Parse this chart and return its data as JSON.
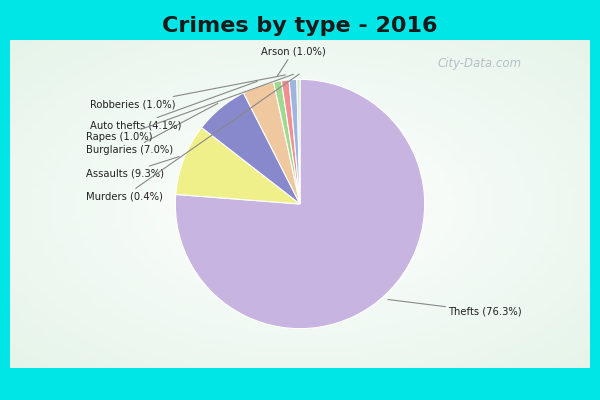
{
  "title": "Crimes by type - 2016",
  "title_fontsize": 16,
  "labels": [
    "Thefts",
    "Assaults",
    "Burglaries",
    "Auto thefts",
    "Arson",
    "Robberies",
    "Rapes",
    "Murders"
  ],
  "percentages": [
    76.3,
    9.3,
    7.0,
    4.1,
    1.0,
    1.0,
    1.0,
    0.4
  ],
  "colors": [
    "#c8b4e0",
    "#f0f08a",
    "#8888cc",
    "#f0c8a0",
    "#a0d890",
    "#f09090",
    "#a0b4e0",
    "#d4e8c0"
  ],
  "background_cyan": "#00e5e5",
  "background_inner": "#e0f0e0",
  "label_display": [
    "Thefts (76.3%)",
    "Assaults (9.3%)",
    "Burglaries (7.0%)",
    "Auto thefts (4.1%)",
    "Arson (1.0%)",
    "Robberies (1.0%)",
    "Rapes (1.0%)",
    "Murders (0.4%)"
  ],
  "watermark": "City-Data.com"
}
